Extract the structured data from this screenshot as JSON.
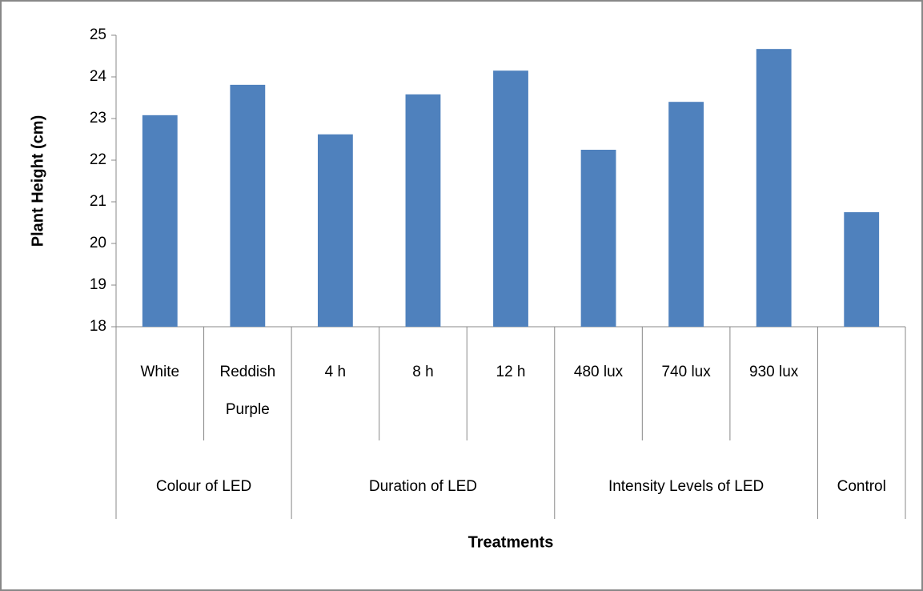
{
  "chart_data": {
    "type": "bar",
    "y_label": "Plant Height (cm)",
    "x_label": "Treatments",
    "categories": [
      "White",
      "Reddish Purple",
      "4 h",
      "8 h",
      "12 h",
      "480 lux",
      "740 lux",
      "930 lux",
      null
    ],
    "groups": [
      {
        "label": "Colour of LED",
        "count": 2
      },
      {
        "label": "Duration of LED",
        "count": 3
      },
      {
        "label": "Intensity Levels of LED",
        "count": 3
      },
      {
        "label": "Control",
        "count": 1
      }
    ],
    "values": [
      23.08,
      23.81,
      22.62,
      23.58,
      24.15,
      22.25,
      23.4,
      24.67,
      20.75
    ],
    "color": "#4f81bd",
    "ylim": [
      18,
      25
    ],
    "yticks": [
      18,
      19,
      20,
      21,
      22,
      23,
      24,
      25
    ],
    "grid": false
  }
}
